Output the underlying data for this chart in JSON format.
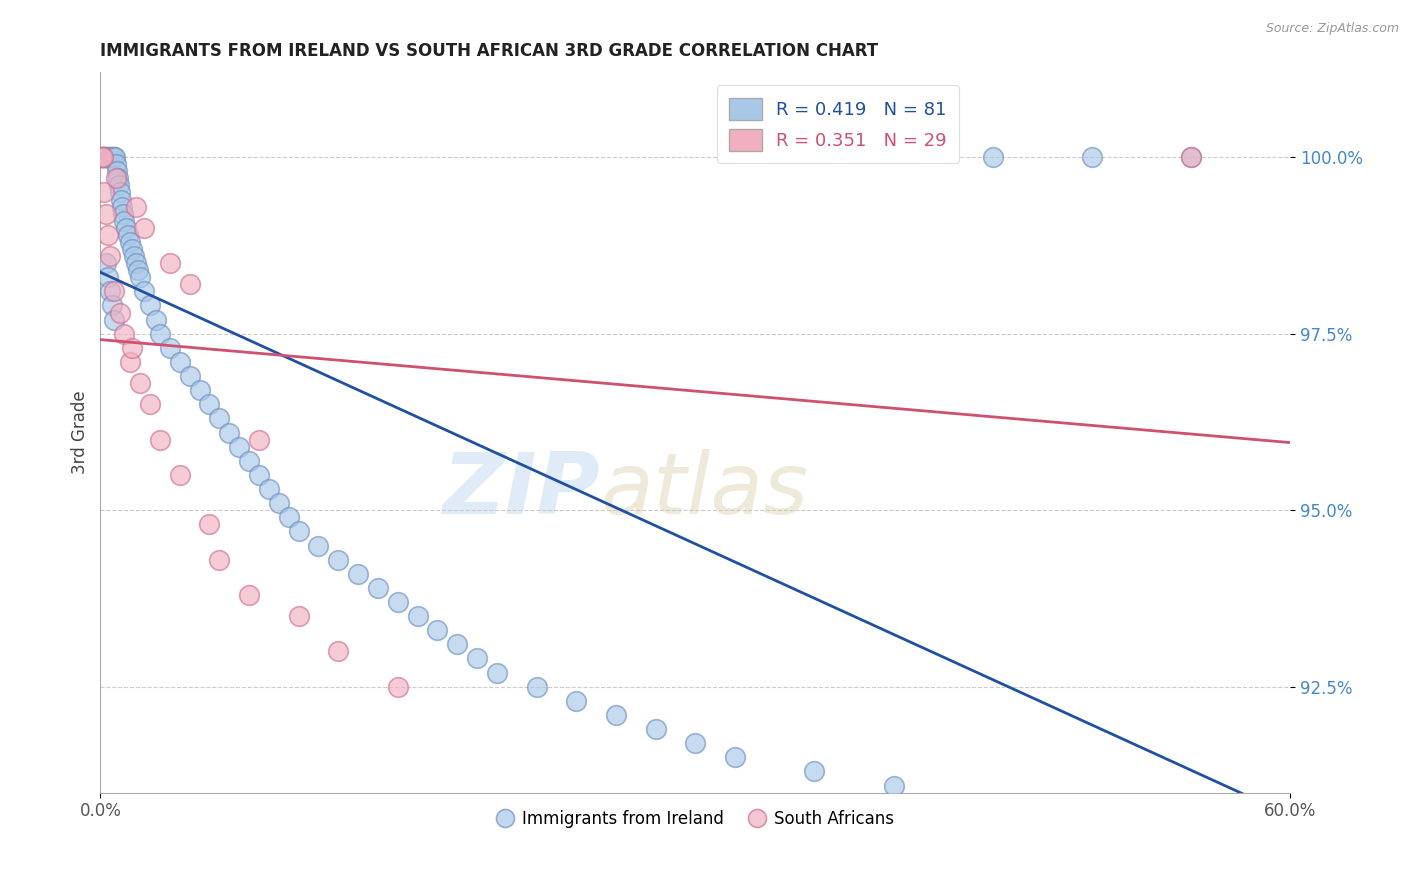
{
  "title": "IMMIGRANTS FROM IRELAND VS SOUTH AFRICAN 3RD GRADE CORRELATION CHART",
  "source_text": "Source: ZipAtlas.com",
  "ylabel": "3rd Grade",
  "xlim": [
    0.0,
    60.0
  ],
  "ylim": [
    91.0,
    101.2
  ],
  "y_tick_vals": [
    92.5,
    95.0,
    97.5,
    100.0
  ],
  "y_tick_labels": [
    "92.5%",
    "95.0%",
    "97.5%",
    "100.0%"
  ],
  "blue_R": 0.419,
  "blue_N": 81,
  "pink_R": 0.351,
  "pink_N": 29,
  "blue_color": "#a8c8e8",
  "pink_color": "#f0b0c0",
  "blue_edge_color": "#7090c0",
  "pink_edge_color": "#d07090",
  "blue_line_color": "#2050a0",
  "pink_line_color": "#d05070",
  "legend_label_blue": "Immigrants from Ireland",
  "legend_label_pink": "South Africans",
  "watermark_zip": "ZIP",
  "watermark_atlas": "atlas",
  "background_color": "#ffffff",
  "title_fontsize": 12,
  "blue_x": [
    0.05,
    0.08,
    0.1,
    0.12,
    0.15,
    0.18,
    0.2,
    0.22,
    0.25,
    0.28,
    0.3,
    0.35,
    0.4,
    0.45,
    0.5,
    0.55,
    0.6,
    0.65,
    0.7,
    0.75,
    0.8,
    0.85,
    0.9,
    0.95,
    1.0,
    1.05,
    1.1,
    1.15,
    1.2,
    1.3,
    1.4,
    1.5,
    1.6,
    1.7,
    1.8,
    1.9,
    2.0,
    2.2,
    2.5,
    2.8,
    3.0,
    3.5,
    4.0,
    4.5,
    5.0,
    5.5,
    6.0,
    6.5,
    7.0,
    7.5,
    8.0,
    8.5,
    9.0,
    9.5,
    10.0,
    11.0,
    12.0,
    13.0,
    14.0,
    15.0,
    16.0,
    17.0,
    18.0,
    19.0,
    20.0,
    22.0,
    24.0,
    26.0,
    28.0,
    30.0,
    32.0,
    36.0,
    40.0,
    45.0,
    50.0,
    55.0,
    0.3,
    0.4,
    0.5,
    0.6,
    0.7
  ],
  "blue_y": [
    100.0,
    100.0,
    100.0,
    100.0,
    100.0,
    100.0,
    100.0,
    100.0,
    100.0,
    100.0,
    100.0,
    100.0,
    100.0,
    100.0,
    100.0,
    100.0,
    100.0,
    100.0,
    100.0,
    100.0,
    99.9,
    99.8,
    99.7,
    99.6,
    99.5,
    99.4,
    99.3,
    99.2,
    99.1,
    99.0,
    98.9,
    98.8,
    98.7,
    98.6,
    98.5,
    98.4,
    98.3,
    98.1,
    97.9,
    97.7,
    97.5,
    97.3,
    97.1,
    96.9,
    96.7,
    96.5,
    96.3,
    96.1,
    95.9,
    95.7,
    95.5,
    95.3,
    95.1,
    94.9,
    94.7,
    94.5,
    94.3,
    94.1,
    93.9,
    93.7,
    93.5,
    93.3,
    93.1,
    92.9,
    92.7,
    92.5,
    92.3,
    92.1,
    91.9,
    91.7,
    91.5,
    91.3,
    91.1,
    100.0,
    100.0,
    100.0,
    98.5,
    98.3,
    98.1,
    97.9,
    97.7
  ],
  "pink_x": [
    0.05,
    0.1,
    0.15,
    0.2,
    0.3,
    0.4,
    0.5,
    0.7,
    1.0,
    1.2,
    1.5,
    2.0,
    2.5,
    3.0,
    4.0,
    5.5,
    6.0,
    7.5,
    8.0,
    10.0,
    12.0,
    15.0,
    3.5,
    4.5,
    2.2,
    1.8,
    0.8,
    55.0,
    1.6
  ],
  "pink_y": [
    100.0,
    100.0,
    100.0,
    99.5,
    99.2,
    98.9,
    98.6,
    98.1,
    97.8,
    97.5,
    97.1,
    96.8,
    96.5,
    96.0,
    95.5,
    94.8,
    94.3,
    93.8,
    96.0,
    93.5,
    93.0,
    92.5,
    98.5,
    98.2,
    99.0,
    99.3,
    99.7,
    100.0,
    97.3
  ]
}
